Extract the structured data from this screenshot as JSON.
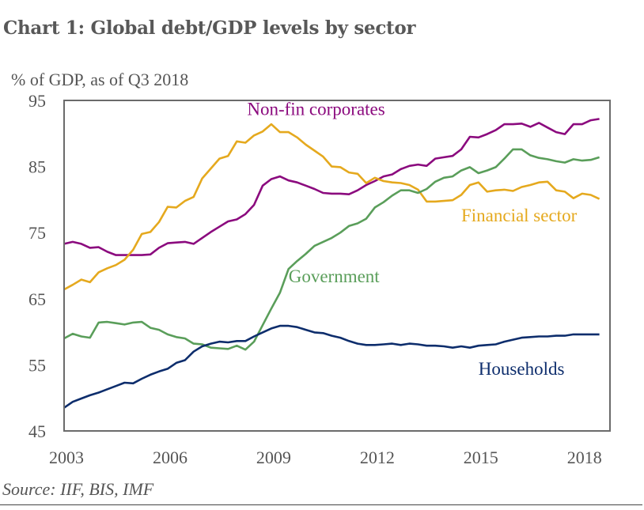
{
  "chart_data": {
    "type": "line",
    "title": "Chart 1: Global debt/GDP levels by sector",
    "ylabel": "% of GDP, as of Q3 2018",
    "xlabel": "",
    "source": "Source: IIF, BIS, IMF",
    "ylim": [
      45,
      95
    ],
    "yticks": [
      95,
      85,
      75,
      65,
      55,
      45
    ],
    "xlim": [
      2003.0,
      2018.5
    ],
    "xticks": [
      "2003",
      "2006",
      "2009",
      "2012",
      "2015",
      "2018"
    ],
    "xtick_values": [
      2003,
      2006,
      2009,
      2012,
      2015,
      2018
    ],
    "x_start": 2003.0,
    "x_step": 0.25,
    "grid": false,
    "series": [
      {
        "name": "Non-fin corporates",
        "color": "#8B0A7E",
        "label_pos": [
          2008.3,
          92.8
        ],
        "values": [
          73.3,
          73.6,
          73.3,
          72.7,
          72.8,
          72.1,
          71.6,
          71.6,
          71.6,
          71.6,
          71.7,
          72.7,
          73.4,
          73.5,
          73.6,
          73.3,
          74.2,
          75.1,
          75.9,
          76.7,
          77.0,
          77.8,
          79.2,
          82.1,
          83.1,
          83.5,
          82.9,
          82.6,
          82.1,
          81.6,
          81.0,
          80.9,
          80.9,
          80.8,
          81.4,
          82.2,
          82.8,
          83.5,
          83.8,
          84.6,
          85.1,
          85.3,
          85.1,
          86.2,
          86.4,
          86.6,
          87.6,
          89.5,
          89.4,
          89.9,
          90.5,
          91.4,
          91.4,
          91.5,
          91.0,
          91.6,
          90.9,
          90.2,
          89.9,
          91.4,
          91.4,
          92.0,
          92.2
        ]
      },
      {
        "name": "Financial sector",
        "color": "#E5A91E",
        "label_pos": [
          2014.5,
          76.7
        ],
        "values": [
          66.4,
          67.1,
          67.9,
          67.5,
          69.0,
          69.6,
          70.1,
          70.9,
          72.4,
          74.8,
          75.1,
          76.6,
          78.9,
          78.8,
          79.8,
          80.4,
          83.2,
          84.7,
          86.2,
          86.6,
          88.8,
          88.6,
          89.7,
          90.3,
          91.4,
          90.2,
          90.2,
          89.4,
          88.3,
          87.4,
          86.5,
          85.0,
          84.9,
          84.1,
          83.9,
          82.5,
          83.3,
          82.8,
          82.6,
          82.5,
          82.2,
          81.5,
          79.7,
          79.7,
          79.8,
          79.9,
          80.7,
          82.2,
          82.6,
          81.2,
          81.4,
          81.5,
          81.3,
          81.9,
          82.2,
          82.6,
          82.7,
          81.4,
          81.2,
          80.2,
          80.9,
          80.7,
          80.1
        ]
      },
      {
        "name": "Government",
        "color": "#5A9E5A",
        "label_pos": [
          2009.5,
          67.5
        ],
        "values": [
          59.0,
          59.7,
          59.3,
          59.1,
          61.4,
          61.5,
          61.3,
          61.1,
          61.4,
          61.5,
          60.6,
          60.3,
          59.6,
          59.2,
          59.0,
          58.2,
          58.1,
          57.6,
          57.5,
          57.4,
          57.9,
          57.3,
          58.5,
          61.0,
          63.5,
          65.9,
          69.5,
          70.7,
          71.8,
          73.0,
          73.6,
          74.2,
          75.0,
          76.0,
          76.4,
          77.1,
          78.8,
          79.6,
          80.6,
          81.4,
          81.4,
          81.0,
          81.6,
          82.7,
          83.3,
          83.5,
          84.4,
          84.9,
          84.0,
          84.4,
          84.9,
          86.2,
          87.6,
          87.6,
          86.7,
          86.3,
          86.1,
          85.8,
          85.6,
          86.1,
          85.9,
          86.0,
          86.4
        ]
      },
      {
        "name": "Households",
        "color": "#0D2D6C",
        "label_pos": [
          2015.0,
          53.5
        ],
        "values": [
          48.5,
          49.4,
          49.9,
          50.4,
          50.8,
          51.3,
          51.8,
          52.3,
          52.2,
          52.9,
          53.5,
          54.0,
          54.4,
          55.3,
          55.7,
          57.0,
          57.8,
          58.2,
          58.5,
          58.4,
          58.6,
          58.6,
          59.3,
          59.9,
          60.5,
          60.9,
          60.9,
          60.7,
          60.3,
          59.9,
          59.8,
          59.4,
          59.1,
          58.6,
          58.2,
          58.0,
          58.0,
          58.1,
          58.2,
          58.0,
          58.2,
          58.1,
          57.9,
          57.9,
          57.8,
          57.6,
          57.8,
          57.6,
          57.9,
          58.0,
          58.1,
          58.5,
          58.8,
          59.1,
          59.2,
          59.3,
          59.3,
          59.4,
          59.4,
          59.6,
          59.6,
          59.6,
          59.6
        ]
      }
    ]
  }
}
